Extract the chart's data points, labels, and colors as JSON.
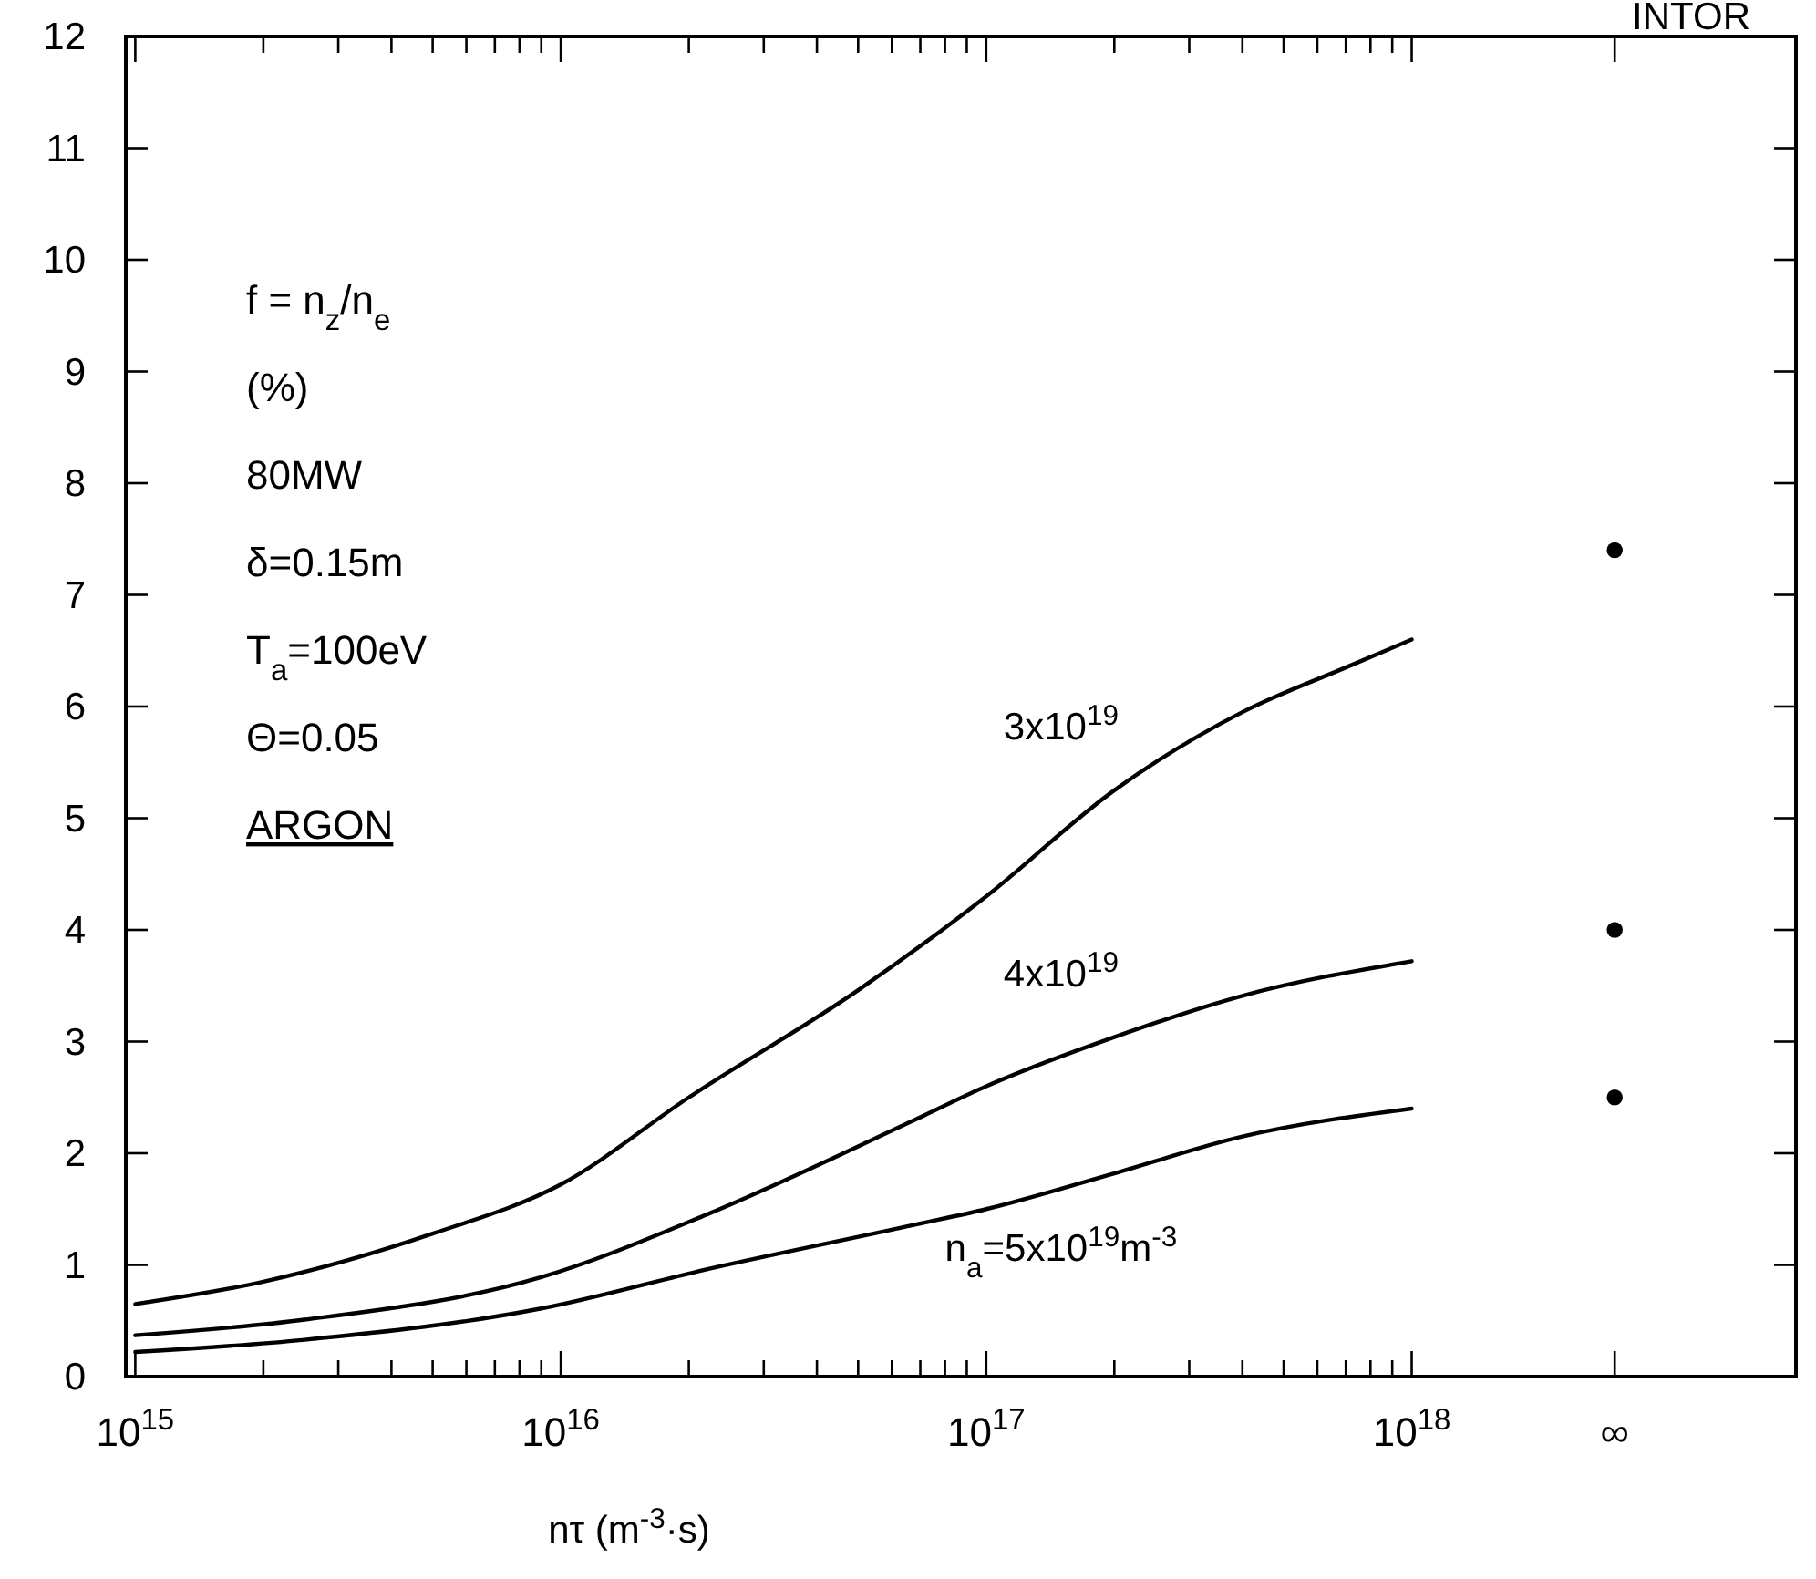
{
  "chart_data": {
    "type": "line",
    "title": "INTOR",
    "xlabel": "nτ (m$^{-3}$·s)",
    "log": "x",
    "xlim": [
      950000000000000.0,
      8e+18
    ],
    "ylim": [
      0,
      12
    ],
    "xticks": [
      {
        "value": 1000000000000000.0,
        "label": "10$^{15}$"
      },
      {
        "value": 2000000000000000.0,
        "label": null
      },
      {
        "value": 3000000000000000.0,
        "label": null
      },
      {
        "value": 4000000000000000.0,
        "label": null
      },
      {
        "value": 5000000000000000.0,
        "label": null
      },
      {
        "value": 6000000000000000.0,
        "label": null
      },
      {
        "value": 7000000000000000.0,
        "label": null
      },
      {
        "value": 8000000000000000.0,
        "label": null
      },
      {
        "value": 9000000000000000.0,
        "label": null
      },
      {
        "value": 1e+16,
        "label": "10$^{16}$"
      },
      {
        "value": 2e+16,
        "label": null
      },
      {
        "value": 3e+16,
        "label": null
      },
      {
        "value": 4e+16,
        "label": null
      },
      {
        "value": 5e+16,
        "label": null
      },
      {
        "value": 6e+16,
        "label": null
      },
      {
        "value": 7e+16,
        "label": null
      },
      {
        "value": 8e+16,
        "label": null
      },
      {
        "value": 9e+16,
        "label": null
      },
      {
        "value": 1e+17,
        "label": "10$^{17}$"
      },
      {
        "value": 2e+17,
        "label": null
      },
      {
        "value": 3e+17,
        "label": null
      },
      {
        "value": 4e+17,
        "label": null
      },
      {
        "value": 5e+17,
        "label": null
      },
      {
        "value": 6e+17,
        "label": null
      },
      {
        "value": 7e+17,
        "label": null
      },
      {
        "value": 8e+17,
        "label": null
      },
      {
        "value": 9e+17,
        "label": null
      },
      {
        "value": 1e+18,
        "label": "10$^{18}$"
      },
      {
        "value": 3e+18,
        "label": "∞"
      }
    ],
    "yticks": [
      0,
      1,
      2,
      3,
      4,
      5,
      6,
      7,
      8,
      9,
      10,
      11,
      12
    ],
    "grid": false,
    "line_style": "solid",
    "series": [
      {
        "name": "3x10$^{19}$",
        "color": "#000000",
        "marker": "none",
        "x": [
          1000000000000000.0,
          2000000000000000.0,
          5000000000000000.0,
          1e+16,
          2e+16,
          5e+16,
          1e+17,
          2e+17,
          4e+17,
          7e+17,
          1e+18
        ],
        "values": [
          0.65,
          0.85,
          1.28,
          1.72,
          2.5,
          3.46,
          4.3,
          5.25,
          5.95,
          6.35,
          6.6
        ]
      },
      {
        "name": "4x10$^{19}$",
        "color": "#000000",
        "marker": "none",
        "x": [
          1000000000000000.0,
          2500000000000000.0,
          9000000000000000.0,
          2.2e+16,
          6.8e+16,
          1e+17,
          2e+17,
          4e+17,
          1e+18
        ],
        "values": [
          0.37,
          0.51,
          0.89,
          1.45,
          2.3,
          2.6,
          3.04,
          3.41,
          3.72
        ]
      },
      {
        "name": "n$_{a}$=5x10$^{19}$m$^{-3}$",
        "color": "#000000",
        "marker": "none",
        "x": [
          1000000000000000.0,
          2500000000000000.0,
          9000000000000000.0,
          2.2e+16,
          6.8e+16,
          1e+17,
          2e+17,
          4e+17,
          1e+18
        ],
        "values": [
          0.22,
          0.33,
          0.61,
          0.96,
          1.36,
          1.5,
          1.82,
          2.15,
          2.4
        ]
      },
      {
        "type": "scatter",
        "color": "#000000",
        "marker": "circle",
        "x": [
          3e+18,
          3e+18,
          3e+18
        ],
        "values": [
          7.4,
          4.0,
          2.5
        ]
      }
    ],
    "annotations": [
      "f = n$_{z}$/n$_{e}$",
      "(%)",
      "80MW",
      "δ=0.15m",
      "T$_{a}$=100eV",
      "Θ=0.05",
      "ARGON"
    ]
  }
}
